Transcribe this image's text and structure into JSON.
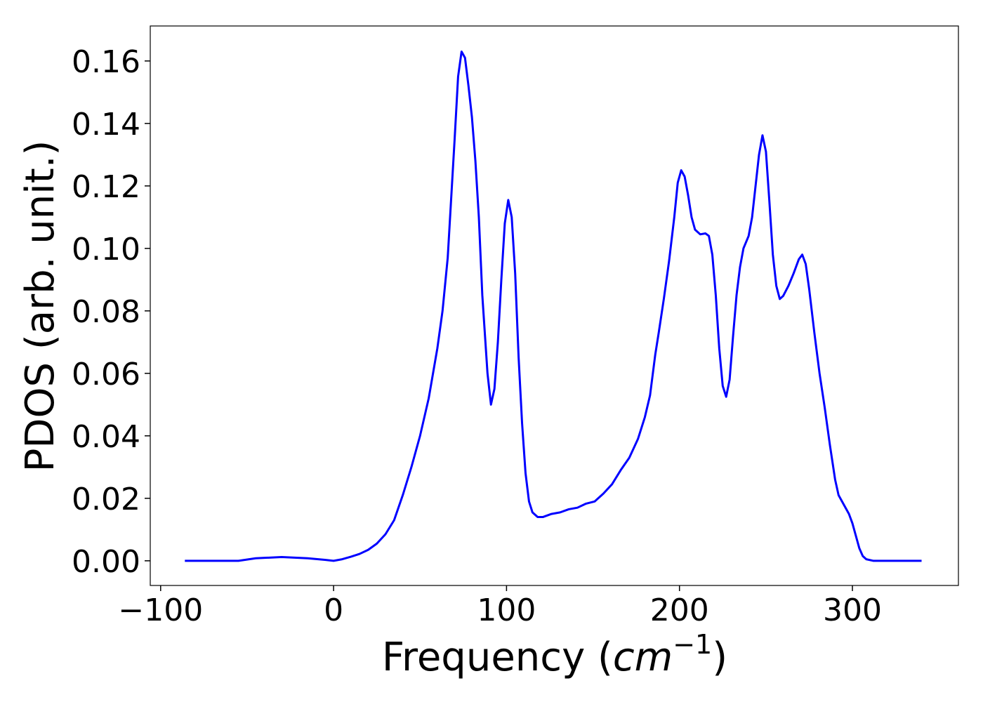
{
  "chart_data": {
    "type": "line",
    "xlabel": [
      "Frequency (",
      "cm",
      "−1",
      ")"
    ],
    "ylabel": "PDOS (arb. unit.)",
    "x": [
      -86,
      -55,
      -45,
      -30,
      -15,
      -5,
      0,
      5,
      10,
      15,
      20,
      25,
      30,
      35,
      40,
      45,
      50,
      55,
      60,
      63,
      66,
      70,
      72,
      74,
      76,
      78,
      80,
      82,
      84,
      86,
      89,
      91,
      93,
      95,
      97,
      99,
      101,
      103,
      105,
      107,
      109,
      111,
      113,
      115,
      118,
      121,
      126,
      131,
      136,
      141,
      146,
      151,
      156,
      161,
      166,
      171,
      176,
      180,
      183,
      186,
      188,
      191,
      194,
      197,
      199,
      201,
      203,
      205,
      207,
      209,
      212,
      215,
      217,
      219,
      221,
      223,
      225,
      227,
      229,
      231,
      233,
      235,
      237,
      240,
      242,
      244,
      246,
      248,
      250,
      252,
      254,
      256,
      258,
      260,
      263,
      266,
      269,
      271,
      273,
      275,
      278,
      281,
      284,
      287,
      290,
      292,
      295,
      298,
      300,
      302,
      304,
      306,
      308,
      312,
      320,
      340
    ],
    "values": [
      0,
      0,
      0.0008,
      0.0012,
      0.0008,
      0.0003,
      0,
      0.0005,
      0.0013,
      0.0022,
      0.0035,
      0.0055,
      0.0085,
      0.013,
      0.021,
      0.03,
      0.04,
      0.052,
      0.068,
      0.08,
      0.097,
      0.135,
      0.155,
      0.163,
      0.161,
      0.152,
      0.142,
      0.128,
      0.11,
      0.085,
      0.06,
      0.05,
      0.055,
      0.07,
      0.09,
      0.108,
      0.1155,
      0.11,
      0.092,
      0.065,
      0.044,
      0.028,
      0.019,
      0.0155,
      0.014,
      0.014,
      0.015,
      0.0155,
      0.0165,
      0.017,
      0.0183,
      0.019,
      0.0215,
      0.0245,
      0.029,
      0.033,
      0.039,
      0.046,
      0.053,
      0.066,
      0.073,
      0.084,
      0.096,
      0.11,
      0.121,
      0.125,
      0.123,
      0.117,
      0.11,
      0.106,
      0.1045,
      0.1048,
      0.104,
      0.098,
      0.085,
      0.068,
      0.056,
      0.0525,
      0.058,
      0.072,
      0.085,
      0.094,
      0.1,
      0.104,
      0.11,
      0.12,
      0.13,
      0.1362,
      0.131,
      0.115,
      0.098,
      0.088,
      0.0838,
      0.0848,
      0.088,
      0.092,
      0.0965,
      0.098,
      0.095,
      0.087,
      0.073,
      0.06,
      0.049,
      0.037,
      0.026,
      0.021,
      0.018,
      0.015,
      0.012,
      0.008,
      0.004,
      0.0015,
      0.0005,
      0,
      0,
      0
    ],
    "color": "#0000ff",
    "xlim": [
      -106,
      361.3
    ],
    "ylim": [
      -0.0079,
      0.1712
    ],
    "xticks": [
      {
        "value": -100,
        "label": "−100"
      },
      0,
      100,
      200,
      300
    ],
    "yticks": [
      {
        "value": 0,
        "label": "0.00"
      },
      {
        "value": 0.02,
        "label": "0.02"
      },
      {
        "value": 0.04,
        "label": "0.04"
      },
      {
        "value": 0.06,
        "label": "0.06"
      },
      {
        "value": 0.08,
        "label": "0.08"
      },
      {
        "value": 0.1,
        "label": "0.10"
      },
      {
        "value": 0.12,
        "label": "0.12"
      },
      {
        "value": 0.14,
        "label": "0.14"
      },
      {
        "value": 0.16,
        "label": "0.16"
      }
    ],
    "grid": false
  }
}
